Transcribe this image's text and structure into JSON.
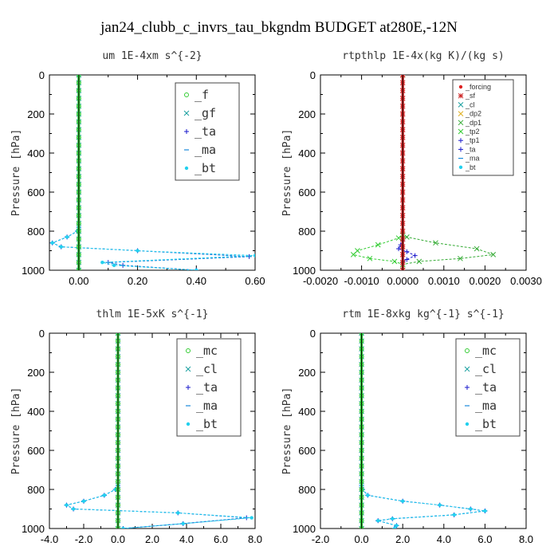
{
  "title": "jan24_clubb_c_invrs_tau_bkgndm  BUDGET at280E,-12N",
  "chart_data": [
    {
      "type": "line",
      "title": "um  1E-4xm s^{-2}",
      "ylabel": "Pressure [hPa]",
      "xlim": [
        -0.1,
        0.6
      ],
      "ylim": [
        1000,
        0
      ],
      "xticks": [
        "0.00",
        "0.20",
        "0.40",
        "0.60"
      ],
      "yticks": [
        "0",
        "200",
        "400",
        "600",
        "800",
        "1000"
      ],
      "legend": [
        "_f",
        "_gf",
        "_ta",
        "_ma",
        "_bt"
      ],
      "series": [
        {
          "name": "_ta",
          "color": "#1a1acc",
          "marker": "plus",
          "x": [
            0,
            0,
            -0.005,
            -0.04,
            -0.09,
            -0.06,
            0.2,
            0.58,
            0.1,
            0.15,
            0.4
          ],
          "y": [
            0,
            780,
            800,
            830,
            860,
            880,
            900,
            930,
            960,
            975,
            1000
          ]
        },
        {
          "name": "_ma",
          "color": "#1a8adb",
          "marker": "dash",
          "x": [
            0,
            0,
            -0.005,
            -0.04,
            -0.09,
            -0.06,
            0.2,
            0.58,
            0.1,
            0.15,
            0.4
          ],
          "y": [
            0,
            780,
            800,
            830,
            860,
            880,
            900,
            930,
            960,
            975,
            1000
          ]
        },
        {
          "name": "_bt",
          "color": "#22d0ee",
          "marker": "dot",
          "x": [
            0,
            0,
            -0.005,
            -0.04,
            -0.09,
            -0.06,
            0.2,
            0.6,
            0.08,
            0.12,
            0.4
          ],
          "y": [
            0,
            780,
            800,
            830,
            860,
            880,
            900,
            925,
            960,
            975,
            1000
          ]
        },
        {
          "name": "_gf",
          "color": "#1aa0a0",
          "marker": "x",
          "x": [
            0,
            0
          ],
          "y": [
            0,
            1000
          ]
        },
        {
          "name": "_f",
          "color": "#33cc33",
          "marker": "circle",
          "x": [
            0,
            0
          ],
          "y": [
            0,
            1000
          ]
        }
      ]
    },
    {
      "type": "line",
      "title": "rtpthlp  1E-4x(kg K)/(kg s)",
      "ylabel": "Pressure [hPa]",
      "xlim": [
        -0.002,
        0.003
      ],
      "ylim": [
        1000,
        0
      ],
      "xticks": [
        "-0.0020",
        "-0.0010",
        "0.0000",
        "0.0010",
        "0.0020",
        "0.0030"
      ],
      "yticks": [
        "0",
        "200",
        "400",
        "600",
        "800",
        "1000"
      ],
      "legend": [
        "_forcing",
        "_sf",
        "_cl",
        "_dp2",
        "_dp1",
        "_tp2",
        "_tp1",
        "_ta",
        "_ma",
        "_bt"
      ],
      "series": [
        {
          "name": "_dp1",
          "color": "#33aa33",
          "marker": "x",
          "x": [
            0,
            0,
            0.0001,
            0.0008,
            0.0018,
            0.0022,
            0.0014,
            0.0004,
            0,
            0
          ],
          "y": [
            0,
            820,
            830,
            860,
            890,
            920,
            940,
            955,
            970,
            1000
          ]
        },
        {
          "name": "_tp2",
          "color": "#33cc33",
          "marker": "x",
          "x": [
            0,
            0,
            -0.0001,
            -0.0006,
            -0.0011,
            -0.0012,
            -0.0008,
            -0.0002,
            0,
            0
          ],
          "y": [
            0,
            820,
            835,
            870,
            900,
            920,
            940,
            955,
            970,
            1000
          ]
        },
        {
          "name": "_tp1",
          "color": "#1a1acc",
          "marker": "plus",
          "x": [
            0,
            0,
            -5e-05,
            -0.0001,
            0.0001,
            0.0003,
            0.0001,
            0,
            0
          ],
          "y": [
            0,
            850,
            870,
            890,
            905,
            925,
            945,
            960,
            1000
          ]
        },
        {
          "name": "_sf",
          "color": "#cc2222",
          "marker": "star",
          "x": [
            0,
            0
          ],
          "y": [
            0,
            1000
          ]
        },
        {
          "name": "_forcing",
          "color": "#dd2222",
          "marker": "dot",
          "x": [
            0,
            0
          ],
          "y": [
            0,
            1000
          ]
        }
      ]
    },
    {
      "type": "line",
      "title": "thlm  1E-5xK s^{-1}",
      "ylabel": "Pressure [hPa]",
      "xlim": [
        -4.0,
        8.0
      ],
      "ylim": [
        1000,
        0
      ],
      "xticks": [
        "-4.0",
        "-2.0",
        "0.0",
        "2.0",
        "4.0",
        "6.0",
        "8.0"
      ],
      "yticks": [
        "0",
        "200",
        "400",
        "600",
        "800",
        "1000"
      ],
      "legend": [
        "_mc",
        "_cl",
        "_ta",
        "_ma",
        "_bt"
      ],
      "series": [
        {
          "name": "_ta",
          "color": "#1a1acc",
          "marker": "plus",
          "x": [
            0,
            0,
            -0.15,
            -0.8,
            -2.0,
            -3.0,
            -2.6,
            3.5,
            7.5,
            3.8,
            0.3
          ],
          "y": [
            0,
            780,
            800,
            830,
            860,
            880,
            900,
            920,
            945,
            975,
            1000
          ]
        },
        {
          "name": "_ma",
          "color": "#1a8adb",
          "marker": "dash",
          "x": [
            0,
            0,
            -0.15,
            -0.8,
            -2.0,
            -3.0,
            -2.6,
            3.5,
            7.5,
            3.8,
            0.3
          ],
          "y": [
            0,
            780,
            800,
            830,
            860,
            880,
            900,
            920,
            945,
            975,
            1000
          ]
        },
        {
          "name": "_bt",
          "color": "#22d0ee",
          "marker": "dot",
          "x": [
            0,
            0,
            -0.15,
            -0.8,
            -2.0,
            -3.0,
            -2.6,
            3.5,
            7.8,
            3.8,
            0.3
          ],
          "y": [
            0,
            780,
            800,
            830,
            860,
            880,
            900,
            920,
            945,
            975,
            1000
          ]
        },
        {
          "name": "_cl",
          "color": "#1aa0a0",
          "marker": "x",
          "x": [
            0,
            0
          ],
          "y": [
            0,
            1000
          ]
        },
        {
          "name": "_mc",
          "color": "#33cc33",
          "marker": "circle",
          "x": [
            0,
            0
          ],
          "y": [
            0,
            1000
          ]
        }
      ]
    },
    {
      "type": "line",
      "title": "rtm  1E-8xkg kg^{-1} s^{-1}",
      "ylabel": "Pressure [hPa]",
      "xlim": [
        -2.0,
        8.0
      ],
      "ylim": [
        1000,
        0
      ],
      "xticks": [
        "-2.0",
        "0.0",
        "2.0",
        "4.0",
        "6.0",
        "8.0"
      ],
      "yticks": [
        "0",
        "200",
        "400",
        "600",
        "800",
        "1000"
      ],
      "legend": [
        "_mc",
        "_cl",
        "_ta",
        "_ma",
        "_bt"
      ],
      "series": [
        {
          "name": "_ta",
          "color": "#1a1acc",
          "marker": "plus",
          "x": [
            0,
            0,
            0.05,
            0.3,
            2.0,
            3.8,
            5.3,
            6.0,
            4.5,
            1.5,
            0.8,
            1.7,
            1.6
          ],
          "y": [
            0,
            780,
            800,
            830,
            860,
            880,
            900,
            910,
            930,
            950,
            960,
            985,
            1000
          ]
        },
        {
          "name": "_ma",
          "color": "#1a8adb",
          "marker": "dash",
          "x": [
            0,
            0,
            0.05,
            0.3,
            2.0,
            3.8,
            5.3,
            6.0,
            4.5,
            1.5,
            0.8,
            1.7,
            1.6
          ],
          "y": [
            0,
            780,
            800,
            830,
            860,
            880,
            900,
            910,
            930,
            950,
            960,
            985,
            1000
          ]
        },
        {
          "name": "_bt",
          "color": "#22d0ee",
          "marker": "dot",
          "x": [
            0,
            0,
            0.05,
            0.3,
            2.0,
            3.8,
            5.3,
            6.0,
            4.5,
            1.5,
            0.8,
            1.7,
            1.6
          ],
          "y": [
            0,
            780,
            800,
            830,
            860,
            880,
            900,
            910,
            930,
            950,
            960,
            985,
            1000
          ]
        },
        {
          "name": "_cl",
          "color": "#1aa0a0",
          "marker": "x",
          "x": [
            0,
            0
          ],
          "y": [
            0,
            1000
          ]
        },
        {
          "name": "_mc",
          "color": "#33cc33",
          "marker": "circle",
          "x": [
            0,
            0
          ],
          "y": [
            0,
            1000
          ]
        }
      ]
    }
  ],
  "legend_styles": {
    "_f": {
      "color": "#33cc33",
      "marker": "circle"
    },
    "_mc": {
      "color": "#33cc33",
      "marker": "circle"
    },
    "_gf": {
      "color": "#1aa0a0",
      "marker": "x"
    },
    "_cl": {
      "color": "#1aa0a0",
      "marker": "x"
    },
    "_ta": {
      "color": "#1a1acc",
      "marker": "plus"
    },
    "_ma": {
      "color": "#1a8adb",
      "marker": "dash"
    },
    "_bt": {
      "color": "#22d0ee",
      "marker": "dot"
    },
    "_forcing": {
      "color": "#dd2222",
      "marker": "dot"
    },
    "_sf": {
      "color": "#cc2222",
      "marker": "star"
    },
    "_dp2": {
      "color": "#e0b020",
      "marker": "x"
    },
    "_dp1": {
      "color": "#33aa33",
      "marker": "x"
    },
    "_tp2": {
      "color": "#33cc33",
      "marker": "x"
    },
    "_tp1": {
      "color": "#1a1acc",
      "marker": "plus"
    }
  }
}
